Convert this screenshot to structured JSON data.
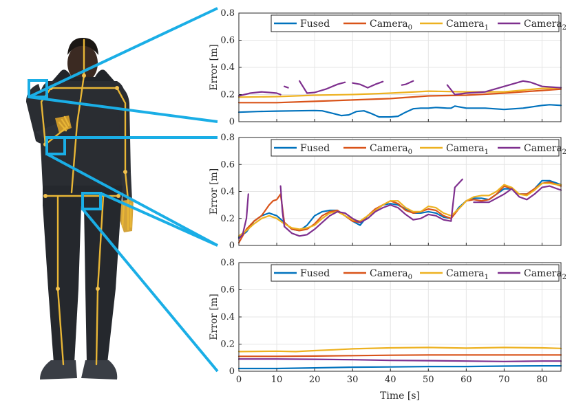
{
  "figure": {
    "colors": {
      "fused": "#0072BD",
      "camera0": "#D95319",
      "camera1": "#EDB120",
      "camera2": "#7E2F8E",
      "callout": "#1AAEE6",
      "grid": "#E5E5E5",
      "body_suit": "#2A2D32",
      "skeleton": "#E8B636"
    },
    "illustration_icon": "human-avatar-with-skeleton"
  },
  "chart_data": [
    {
      "type": "line",
      "xlabel": "",
      "ylabel": "Error [m]",
      "xlim": [
        0,
        85
      ],
      "ylim": [
        0,
        0.8
      ],
      "yticks": [
        "0",
        "0.2",
        "0.4",
        "0.6",
        "0.8"
      ],
      "xticks": [],
      "grid": true,
      "legend": "top-right",
      "series": [
        {
          "name": "Fused",
          "color": "#0072BD",
          "x": [
            0,
            5,
            10,
            15,
            20,
            22,
            25,
            27,
            29,
            31,
            33,
            35,
            37,
            40,
            42,
            44,
            46,
            48,
            50,
            52,
            55,
            56,
            57,
            58,
            60,
            65,
            70,
            75,
            80,
            82,
            85
          ],
          "y": [
            0.07,
            0.075,
            0.078,
            0.08,
            0.082,
            0.08,
            0.06,
            0.045,
            0.05,
            0.075,
            0.08,
            0.06,
            0.035,
            0.035,
            0.04,
            0.07,
            0.095,
            0.1,
            0.1,
            0.105,
            0.1,
            0.1,
            0.115,
            0.11,
            0.1,
            0.1,
            0.09,
            0.1,
            0.12,
            0.125,
            0.12
          ]
        },
        {
          "name": "Camera0",
          "color": "#D95319",
          "x": [
            0,
            10,
            20,
            30,
            40,
            50,
            60,
            70,
            80,
            85
          ],
          "y": [
            0.14,
            0.14,
            0.15,
            0.16,
            0.17,
            0.19,
            0.195,
            0.21,
            0.23,
            0.24
          ]
        },
        {
          "name": "Camera1",
          "color": "#EDB120",
          "x": [
            0,
            10,
            20,
            30,
            40,
            50,
            60,
            70,
            80,
            85
          ],
          "y": [
            0.18,
            0.185,
            0.195,
            0.2,
            0.21,
            0.225,
            0.22,
            0.22,
            0.245,
            0.25
          ]
        },
        {
          "name": "Camera2",
          "color": "#7E2F8E",
          "x": [
            0,
            3,
            6,
            8,
            10,
            11,
            null,
            12,
            13,
            null,
            16,
            18,
            20,
            23,
            26,
            28,
            null,
            30,
            32,
            34,
            36,
            38,
            null,
            43,
            44,
            46,
            null,
            55,
            57,
            60,
            65,
            70,
            75,
            77,
            80,
            85
          ],
          "y": [
            0.19,
            0.21,
            0.22,
            0.215,
            0.21,
            0.2,
            null,
            0.26,
            0.25,
            null,
            0.3,
            0.21,
            0.215,
            0.24,
            0.275,
            0.29,
            null,
            0.285,
            0.275,
            0.25,
            0.275,
            0.295,
            null,
            0.27,
            0.275,
            0.3,
            null,
            0.27,
            0.2,
            0.21,
            0.22,
            0.26,
            0.3,
            0.29,
            0.26,
            0.25
          ]
        }
      ]
    },
    {
      "type": "line",
      "xlabel": "",
      "ylabel": "Error [m]",
      "xlim": [
        0,
        85
      ],
      "ylim": [
        0,
        0.8
      ],
      "yticks": [
        "0",
        "0.2",
        "0.4",
        "0.6",
        "0.8"
      ],
      "xticks": [],
      "grid": true,
      "legend": "top-right",
      "series": [
        {
          "name": "Fused",
          "color": "#0072BD",
          "x": [
            0,
            2,
            4,
            6,
            8,
            10,
            12,
            14,
            16,
            18,
            20,
            22,
            24,
            26,
            28,
            30,
            32,
            34,
            36,
            38,
            40,
            42,
            44,
            46,
            48,
            50,
            52,
            54,
            56,
            58,
            60,
            62,
            64,
            66,
            68,
            70,
            72,
            74,
            76,
            78,
            80,
            82,
            84,
            85
          ],
          "y": [
            0.06,
            0.1,
            0.18,
            0.22,
            0.24,
            0.22,
            0.17,
            0.12,
            0.11,
            0.15,
            0.22,
            0.25,
            0.26,
            0.26,
            0.22,
            0.18,
            0.15,
            0.22,
            0.26,
            0.3,
            0.31,
            0.3,
            0.27,
            0.24,
            0.24,
            0.25,
            0.24,
            0.21,
            0.2,
            0.28,
            0.33,
            0.35,
            0.35,
            0.34,
            0.38,
            0.42,
            0.42,
            0.38,
            0.38,
            0.42,
            0.48,
            0.48,
            0.46,
            0.45
          ]
        },
        {
          "name": "Camera0",
          "color": "#D95319",
          "x": [
            0,
            2,
            4,
            6,
            8,
            9,
            10,
            11,
            12,
            14,
            16,
            18,
            20,
            22,
            24,
            26,
            28,
            30,
            32,
            34,
            36,
            38,
            40,
            42,
            44,
            46,
            48,
            50,
            52,
            54,
            56,
            58,
            60,
            62,
            64,
            66,
            68,
            70,
            72,
            74,
            76,
            78,
            80,
            82,
            84,
            85
          ],
          "y": [
            0.02,
            0.12,
            0.18,
            0.22,
            0.3,
            0.33,
            0.34,
            0.38,
            0.17,
            0.12,
            0.11,
            0.12,
            0.16,
            0.22,
            0.25,
            0.26,
            0.22,
            0.18,
            0.17,
            0.22,
            0.27,
            0.3,
            0.33,
            0.31,
            0.26,
            0.24,
            0.25,
            0.27,
            0.26,
            0.22,
            0.2,
            0.27,
            0.33,
            0.34,
            0.33,
            0.34,
            0.38,
            0.44,
            0.42,
            0.38,
            0.38,
            0.42,
            0.46,
            0.47,
            0.45,
            0.44
          ]
        },
        {
          "name": "Camera1",
          "color": "#EDB120",
          "x": [
            0,
            2,
            4,
            6,
            8,
            10,
            12,
            14,
            16,
            18,
            20,
            22,
            24,
            26,
            28,
            30,
            32,
            34,
            36,
            38,
            40,
            42,
            44,
            46,
            48,
            50,
            52,
            54,
            56,
            58,
            60,
            62,
            64,
            66,
            68,
            70,
            72,
            74,
            76,
            78,
            80,
            82,
            84,
            85
          ],
          "y": [
            0.07,
            0.11,
            0.16,
            0.2,
            0.22,
            0.2,
            0.16,
            0.13,
            0.12,
            0.13,
            0.15,
            0.2,
            0.24,
            0.25,
            0.22,
            0.19,
            0.18,
            0.22,
            0.26,
            0.3,
            0.33,
            0.33,
            0.28,
            0.25,
            0.25,
            0.29,
            0.28,
            0.24,
            0.22,
            0.27,
            0.33,
            0.36,
            0.37,
            0.37,
            0.4,
            0.45,
            0.43,
            0.38,
            0.37,
            0.41,
            0.46,
            0.46,
            0.45,
            0.45
          ]
        },
        {
          "name": "Camera2",
          "color": "#7E2F8E",
          "x": [
            0,
            1,
            2,
            2.5,
            null,
            11,
            11.5,
            12,
            14,
            16,
            18,
            20,
            22,
            24,
            26,
            28,
            30,
            32,
            34,
            36,
            38,
            40,
            42,
            44,
            46,
            48,
            50,
            52,
            54,
            56,
            57,
            59,
            null,
            62,
            64,
            66,
            68,
            70,
            72,
            74,
            76,
            78,
            80,
            82,
            84,
            85
          ],
          "y": [
            0.05,
            0.08,
            0.2,
            0.38,
            null,
            0.44,
            0.25,
            0.14,
            0.09,
            0.07,
            0.08,
            0.12,
            0.17,
            0.22,
            0.25,
            0.24,
            0.2,
            0.17,
            0.2,
            0.25,
            0.28,
            0.3,
            0.28,
            0.23,
            0.19,
            0.2,
            0.23,
            0.22,
            0.19,
            0.18,
            0.43,
            0.49,
            null,
            0.32,
            0.32,
            0.32,
            0.35,
            0.38,
            0.42,
            0.36,
            0.34,
            0.38,
            0.43,
            0.44,
            0.42,
            0.41
          ]
        }
      ]
    },
    {
      "type": "line",
      "xlabel": "Time [s]",
      "ylabel": "Error [m]",
      "xlim": [
        0,
        85
      ],
      "ylim": [
        0,
        0.8
      ],
      "yticks": [
        "0",
        "0.2",
        "0.4",
        "0.6",
        "0.8"
      ],
      "xticks": [
        "0",
        "10",
        "20",
        "30",
        "40",
        "50",
        "60",
        "70",
        "80"
      ],
      "grid": true,
      "legend": "top-right",
      "series": [
        {
          "name": "Fused",
          "color": "#0072BD",
          "x": [
            0,
            10,
            20,
            30,
            40,
            50,
            60,
            70,
            80,
            85
          ],
          "y": [
            0.02,
            0.02,
            0.025,
            0.03,
            0.032,
            0.035,
            0.035,
            0.038,
            0.04,
            0.04
          ]
        },
        {
          "name": "Camera0",
          "color": "#D95319",
          "x": [
            0,
            10,
            20,
            30,
            40,
            50,
            60,
            70,
            80,
            85
          ],
          "y": [
            0.11,
            0.11,
            0.112,
            0.115,
            0.118,
            0.12,
            0.12,
            0.12,
            0.12,
            0.12
          ]
        },
        {
          "name": "Camera1",
          "color": "#EDB120",
          "x": [
            0,
            10,
            15,
            20,
            25,
            30,
            40,
            50,
            60,
            70,
            80,
            85
          ],
          "y": [
            0.145,
            0.148,
            0.145,
            0.152,
            0.158,
            0.165,
            0.172,
            0.175,
            0.17,
            0.175,
            0.172,
            0.168
          ]
        },
        {
          "name": "Camera2",
          "color": "#7E2F8E",
          "x": [
            0,
            10,
            20,
            30,
            40,
            50,
            60,
            70,
            80,
            85
          ],
          "y": [
            0.09,
            0.09,
            0.088,
            0.085,
            0.08,
            0.078,
            0.075,
            0.072,
            0.075,
            0.075
          ]
        }
      ]
    }
  ]
}
